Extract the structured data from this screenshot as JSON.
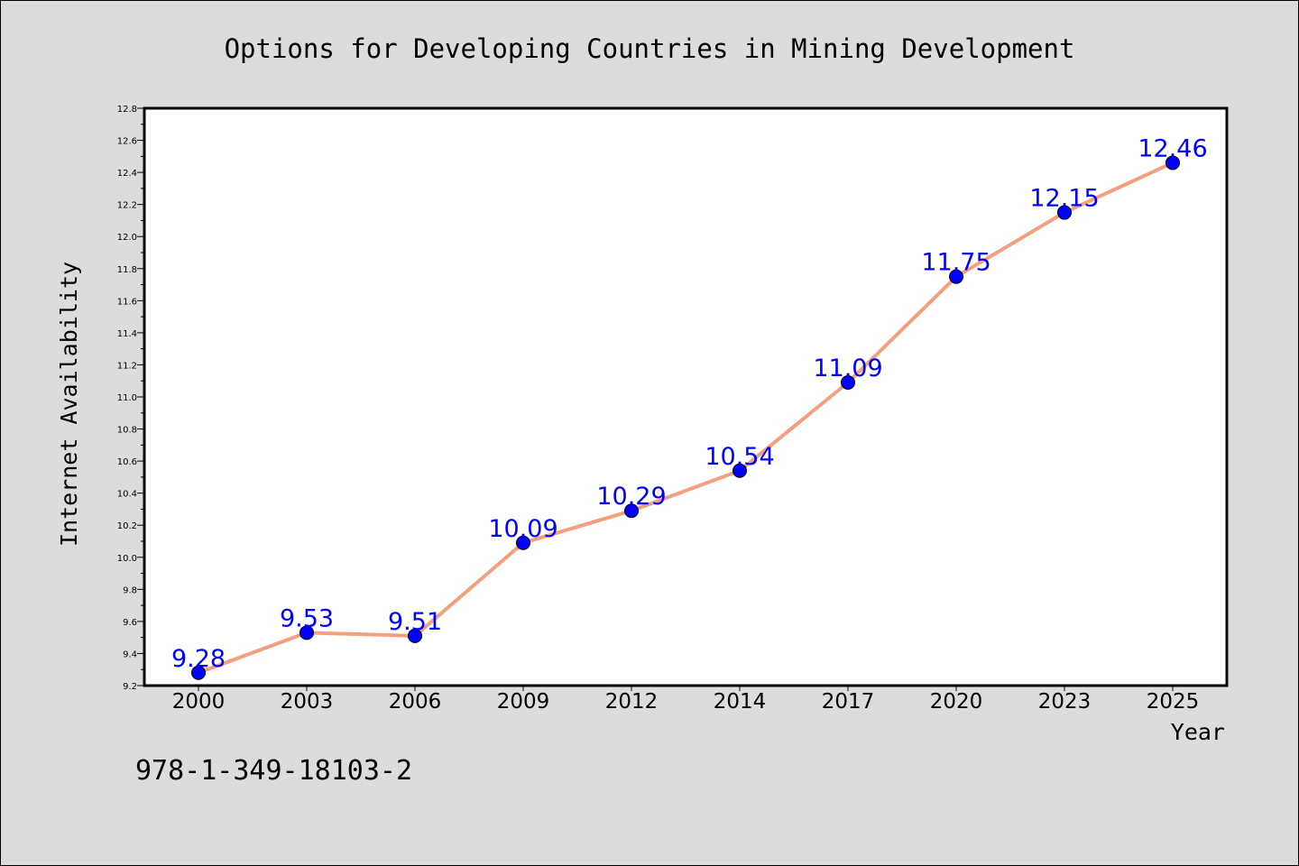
{
  "chart_data": {
    "type": "line",
    "title": "Options for Developing Countries in Mining Development",
    "xlabel": "Year",
    "ylabel": "Internet Availability",
    "categories": [
      "2000",
      "2003",
      "2006",
      "2009",
      "2012",
      "2014",
      "2017",
      "2020",
      "2023",
      "2025"
    ],
    "series": [
      {
        "values": [
          9.28,
          9.53,
          9.51,
          10.09,
          10.29,
          10.54,
          11.09,
          11.75,
          12.15,
          12.46
        ],
        "labels": [
          "9.28",
          "9.53",
          "9.51",
          "10.09",
          "10.29",
          "10.54",
          "11.09",
          "11.75",
          "12.15",
          "12.46"
        ]
      }
    ],
    "yticks": [
      "9.2",
      "9.4",
      "9.6",
      "9.8",
      "10.0",
      "10.2",
      "10.4",
      "10.6",
      "10.8",
      "11.0",
      "11.2",
      "11.4",
      "11.6",
      "11.8",
      "12.0",
      "12.2",
      "12.4",
      "12.6",
      "12.8"
    ],
    "ylim": [
      9.2,
      12.8
    ],
    "grid": false,
    "colors": {
      "line": "#f4a07e",
      "marker": "#0000ff",
      "label": "#0000ff",
      "plot_background": "#ffffff",
      "figure_background": "#dcdcdc"
    }
  },
  "footnote": "978-1-349-18103-2"
}
